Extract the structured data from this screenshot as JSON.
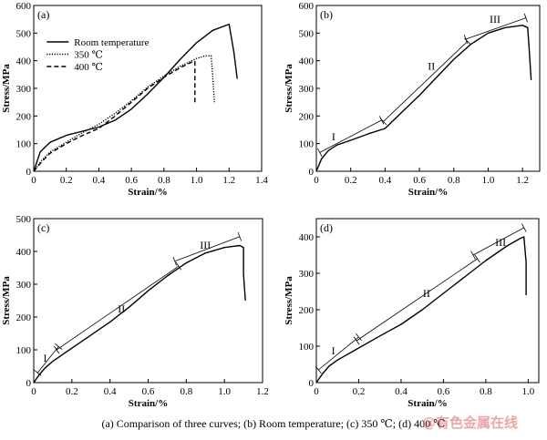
{
  "caption": "(a) Comparison of three curves; (b) Room temperature; (c) 350 ℃; (d) 400 ℃",
  "watermark": "@有色金属在线",
  "chart_data": [
    {
      "type": "line",
      "panel": "(a)",
      "xlabel": "Strain/%",
      "ylabel": "Stress/MPa",
      "xlim": [
        0,
        1.4
      ],
      "ylim": [
        0,
        600
      ],
      "xticks": [
        0,
        0.2,
        0.4,
        0.6,
        0.8,
        1.0,
        1.2,
        1.4
      ],
      "yticks": [
        0,
        100,
        200,
        300,
        400,
        500,
        600
      ],
      "legend_position": "top-right",
      "series": [
        {
          "name": "Room temperature",
          "style": "solid",
          "x": [
            0,
            0.04,
            0.1,
            0.2,
            0.3,
            0.4,
            0.5,
            0.6,
            0.7,
            0.8,
            0.9,
            1.0,
            1.1,
            1.2,
            1.23,
            1.25
          ],
          "y": [
            0,
            70,
            105,
            130,
            145,
            160,
            185,
            225,
            280,
            340,
            405,
            465,
            510,
            532,
            430,
            335
          ]
        },
        {
          "name": "350 ℃",
          "style": "dotted",
          "x": [
            0,
            0.05,
            0.1,
            0.2,
            0.3,
            0.4,
            0.5,
            0.6,
            0.7,
            0.8,
            0.9,
            1.0,
            1.05,
            1.09,
            1.1,
            1.11
          ],
          "y": [
            0,
            40,
            70,
            105,
            140,
            170,
            210,
            255,
            305,
            345,
            380,
            408,
            417,
            418,
            340,
            250
          ]
        },
        {
          "name": "400 ℃",
          "style": "dashed",
          "x": [
            0,
            0.05,
            0.1,
            0.2,
            0.3,
            0.4,
            0.5,
            0.6,
            0.7,
            0.8,
            0.9,
            0.97,
            0.99,
            0.99
          ],
          "y": [
            0,
            35,
            65,
            100,
            130,
            155,
            200,
            250,
            300,
            340,
            375,
            395,
            398,
            240
          ]
        }
      ]
    },
    {
      "type": "line",
      "panel": "(b)",
      "xlabel": "Strain/%",
      "ylabel": "Stress/MPa",
      "xlim": [
        0,
        1.3
      ],
      "ylim": [
        0,
        600
      ],
      "xticks": [
        0,
        0.2,
        0.4,
        0.6,
        0.8,
        1.0,
        1.2
      ],
      "yticks": [
        0,
        100,
        200,
        300,
        400,
        500,
        600
      ],
      "series": [
        {
          "style": "solid",
          "x": [
            0,
            0.03,
            0.07,
            0.12,
            0.2,
            0.3,
            0.4,
            0.5,
            0.6,
            0.7,
            0.8,
            0.9,
            1.0,
            1.1,
            1.2,
            1.23,
            1.24,
            1.25
          ],
          "y": [
            0,
            45,
            75,
            95,
            112,
            135,
            155,
            215,
            275,
            340,
            405,
            460,
            500,
            520,
            528,
            520,
            430,
            330
          ]
        }
      ],
      "stage_labels": [
        {
          "text": "I",
          "x": 0.1,
          "y": 125
        },
        {
          "text": "II",
          "x": 0.67,
          "y": 380
        },
        {
          "text": "III",
          "x": 1.04,
          "y": 550
        }
      ],
      "stage_lines": [
        {
          "x": [
            0.02,
            0.38
          ],
          "y": [
            68,
            185
          ]
        },
        {
          "x": [
            0.39,
            0.88
          ],
          "y": [
            180,
            470
          ]
        },
        {
          "x": [
            0.87,
            1.22
          ],
          "y": [
            478,
            555
          ]
        }
      ]
    },
    {
      "type": "line",
      "panel": "(c)",
      "xlabel": "Strain/%",
      "ylabel": "Stress/MPa",
      "xlim": [
        0,
        1.2
      ],
      "ylim": [
        0,
        500
      ],
      "xticks": [
        0,
        0.2,
        0.4,
        0.6,
        0.8,
        1.0,
        1.2
      ],
      "yticks": [
        0,
        100,
        200,
        300,
        400,
        500
      ],
      "series": [
        {
          "style": "solid",
          "x": [
            0,
            0.03,
            0.06,
            0.1,
            0.2,
            0.3,
            0.4,
            0.5,
            0.6,
            0.7,
            0.8,
            0.9,
            1.0,
            1.08,
            1.1,
            1.1,
            1.11
          ],
          "y": [
            0,
            25,
            45,
            65,
            105,
            145,
            185,
            230,
            280,
            325,
            365,
            395,
            412,
            418,
            412,
            330,
            250
          ]
        }
      ],
      "stage_labels": [
        {
          "text": "I",
          "x": 0.06,
          "y": 75
        },
        {
          "text": "II",
          "x": 0.46,
          "y": 225
        },
        {
          "text": "III",
          "x": 0.9,
          "y": 420
        }
      ],
      "stage_lines": [
        {
          "x": [
            0.02,
            0.13
          ],
          "y": [
            30,
            110
          ]
        },
        {
          "x": [
            0.12,
            0.76
          ],
          "y": [
            100,
            355
          ]
        },
        {
          "x": [
            0.74,
            1.08
          ],
          "y": [
            370,
            445
          ]
        }
      ]
    },
    {
      "type": "line",
      "panel": "(d)",
      "xlabel": "Strain/%",
      "ylabel": "Stress/MPa",
      "xlim": [
        0,
        1.05
      ],
      "ylim": [
        0,
        450
      ],
      "xticks": [
        0,
        0.2,
        0.4,
        0.6,
        0.8,
        1.0
      ],
      "yticks": [
        0,
        100,
        200,
        300,
        400
      ],
      "series": [
        {
          "style": "solid",
          "x": [
            0,
            0.03,
            0.06,
            0.1,
            0.2,
            0.3,
            0.4,
            0.5,
            0.6,
            0.7,
            0.8,
            0.9,
            0.96,
            0.98,
            0.99,
            0.99
          ],
          "y": [
            0,
            25,
            45,
            62,
            95,
            128,
            160,
            200,
            245,
            290,
            335,
            375,
            395,
            400,
            330,
            240
          ]
        }
      ],
      "stage_labels": [
        {
          "text": "I",
          "x": 0.08,
          "y": 88
        },
        {
          "text": "II",
          "x": 0.52,
          "y": 245
        },
        {
          "text": "III",
          "x": 0.87,
          "y": 385
        }
      ],
      "stage_lines": [
        {
          "x": [
            0.01,
            0.2
          ],
          "y": [
            35,
            125
          ]
        },
        {
          "x": [
            0.19,
            0.76
          ],
          "y": [
            115,
            340
          ]
        },
        {
          "x": [
            0.74,
            0.98
          ],
          "y": [
            350,
            425
          ]
        }
      ]
    }
  ]
}
